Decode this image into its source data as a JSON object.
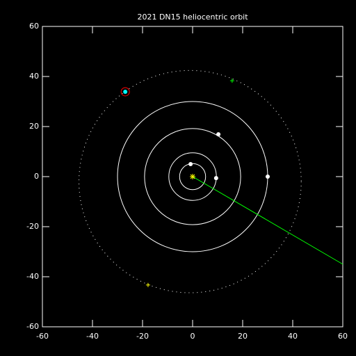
{
  "chart_data": {
    "type": "orbit",
    "title": "2021 DN15 heliocentric orbit",
    "xlim": [
      -60,
      60
    ],
    "ylim": [
      -60,
      60
    ],
    "xticks": [
      -60,
      -40,
      -20,
      0,
      20,
      40,
      60
    ],
    "yticks": [
      -60,
      -40,
      -20,
      0,
      20,
      40,
      60
    ],
    "orbits": {
      "r": [
        5.2,
        9.5,
        19.2,
        30
      ],
      "color": "#ffffff"
    },
    "object_orbit": {
      "x": -1,
      "y": -2,
      "r": 44.4,
      "color": "#ffffff"
    },
    "planets": {
      "x": [
        -0.8,
        9.4,
        10.3,
        30
      ],
      "y": [
        5.0,
        -0.6,
        16.9,
        0
      ],
      "color": "#ffffff"
    },
    "object": {
      "x": -26.9,
      "y": 33.9,
      "color": "#00ffff",
      "ring_color": "#ff0000"
    },
    "sun": {
      "x": 0,
      "y": 0,
      "color": "#ffff00"
    },
    "markers": [
      {
        "x": 15.8,
        "y": 38.3,
        "color": "#00ff00"
      },
      {
        "x": -17.8,
        "y": -43.3,
        "color": "#ffff00"
      }
    ],
    "line": {
      "x": [
        0,
        60
      ],
      "y": [
        0,
        -35
      ],
      "color": "#00ff00"
    }
  }
}
